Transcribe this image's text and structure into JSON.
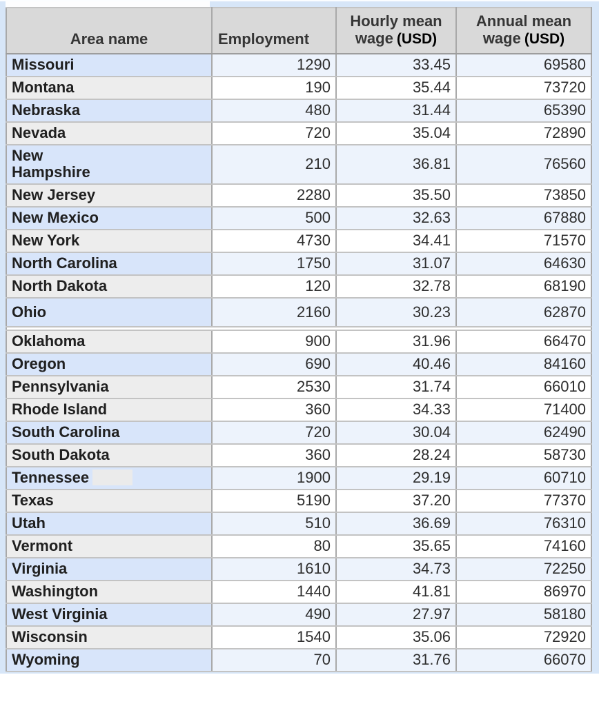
{
  "page": {
    "frame_bg": "#d7e6f8",
    "header_bg": "#d9d9d9",
    "row_blue_area_bg": "#d8e5fa",
    "row_blue_num_bg": "#edf3fc",
    "row_plain_area_bg": "#ededed",
    "row_plain_num_bg": "#ffffff"
  },
  "table": {
    "header": {
      "area": "Area name",
      "employment": "Employment",
      "hourly_top": "Hourly mean",
      "annual_top": "Annual mean",
      "wage_word": "wage",
      "unit": "(USD)"
    },
    "rows": [
      {
        "area": "Missouri",
        "employment": "1290",
        "hourly": "33.45",
        "annual": "69580",
        "variant": "blue"
      },
      {
        "area": "Montana",
        "employment": "190",
        "hourly": "35.44",
        "annual": "73720",
        "variant": "plain"
      },
      {
        "area": "Nebraska",
        "employment": "480",
        "hourly": "31.44",
        "annual": "65390",
        "variant": "blue"
      },
      {
        "area": "Nevada",
        "employment": "720",
        "hourly": "35.04",
        "annual": "72890",
        "variant": "plain"
      },
      {
        "area": "New\nHampshire",
        "employment": "210",
        "hourly": "36.81",
        "annual": "76560",
        "variant": "blue"
      },
      {
        "area": "New Jersey",
        "employment": "2280",
        "hourly": "35.50",
        "annual": "73850",
        "variant": "plain"
      },
      {
        "area": "New Mexico",
        "employment": "500",
        "hourly": "32.63",
        "annual": "67880",
        "variant": "blue"
      },
      {
        "area": "New York",
        "employment": "4730",
        "hourly": "34.41",
        "annual": "71570",
        "variant": "plain"
      },
      {
        "area": "North Carolina",
        "employment": "1750",
        "hourly": "31.07",
        "annual": "64630",
        "variant": "blue"
      },
      {
        "area": "North Dakota",
        "employment": "120",
        "hourly": "32.78",
        "annual": "68190",
        "variant": "plain"
      },
      {
        "area": "Ohio",
        "employment": "2160",
        "hourly": "30.23",
        "annual": "62870",
        "variant": "blue",
        "tall": true,
        "gap_after": true
      },
      {
        "area": "Oklahoma",
        "employment": "900",
        "hourly": "31.96",
        "annual": "66470",
        "variant": "plain"
      },
      {
        "area": "Oregon",
        "employment": "690",
        "hourly": "40.46",
        "annual": "84160",
        "variant": "blue"
      },
      {
        "area": "Pennsylvania",
        "employment": "2530",
        "hourly": "31.74",
        "annual": "66010",
        "variant": "plain"
      },
      {
        "area": "Rhode Island",
        "employment": "360",
        "hourly": "34.33",
        "annual": "71400",
        "variant": "plain"
      },
      {
        "area": "South Carolina",
        "employment": "720",
        "hourly": "30.04",
        "annual": "62490",
        "variant": "blue"
      },
      {
        "area": "South Dakota",
        "employment": "360",
        "hourly": "28.24",
        "annual": "58730",
        "variant": "plain"
      },
      {
        "area": "Tennessee",
        "employment": "1900",
        "hourly": "29.19",
        "annual": "60710",
        "variant": "blue",
        "artifact": true
      },
      {
        "area": "Texas",
        "employment": "5190",
        "hourly": "37.20",
        "annual": "77370",
        "variant": "plain"
      },
      {
        "area": "Utah",
        "employment": "510",
        "hourly": "36.69",
        "annual": "76310",
        "variant": "blue"
      },
      {
        "area": "Vermont",
        "employment": "80",
        "hourly": "35.65",
        "annual": "74160",
        "variant": "plain"
      },
      {
        "area": "Virginia",
        "employment": "1610",
        "hourly": "34.73",
        "annual": "72250",
        "variant": "blue"
      },
      {
        "area": "Washington",
        "employment": "1440",
        "hourly": "41.81",
        "annual": "86970",
        "variant": "plain"
      },
      {
        "area": "West Virginia",
        "employment": "490",
        "hourly": "27.97",
        "annual": "58180",
        "variant": "blue"
      },
      {
        "area": "Wisconsin",
        "employment": "1540",
        "hourly": "35.06",
        "annual": "72920",
        "variant": "plain"
      },
      {
        "area": "Wyoming",
        "employment": "70",
        "hourly": "31.76",
        "annual": "66070",
        "variant": "blue"
      }
    ]
  }
}
